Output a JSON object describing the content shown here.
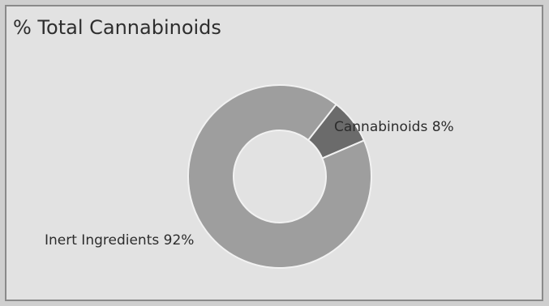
{
  "title": "% Total Cannabinoids",
  "chart_data": {
    "type": "pie",
    "title": "% Total Cannabinoids",
    "donut": true,
    "slices": [
      {
        "label": "Cannabinoids",
        "value": 8,
        "display": "Cannabinoids 8%",
        "color": "#6b6b6b"
      },
      {
        "label": "Inert Ingredients",
        "value": 92,
        "display": "Inert Ingredients 92%",
        "color": "#9e9e9e"
      }
    ],
    "legend": "none"
  }
}
